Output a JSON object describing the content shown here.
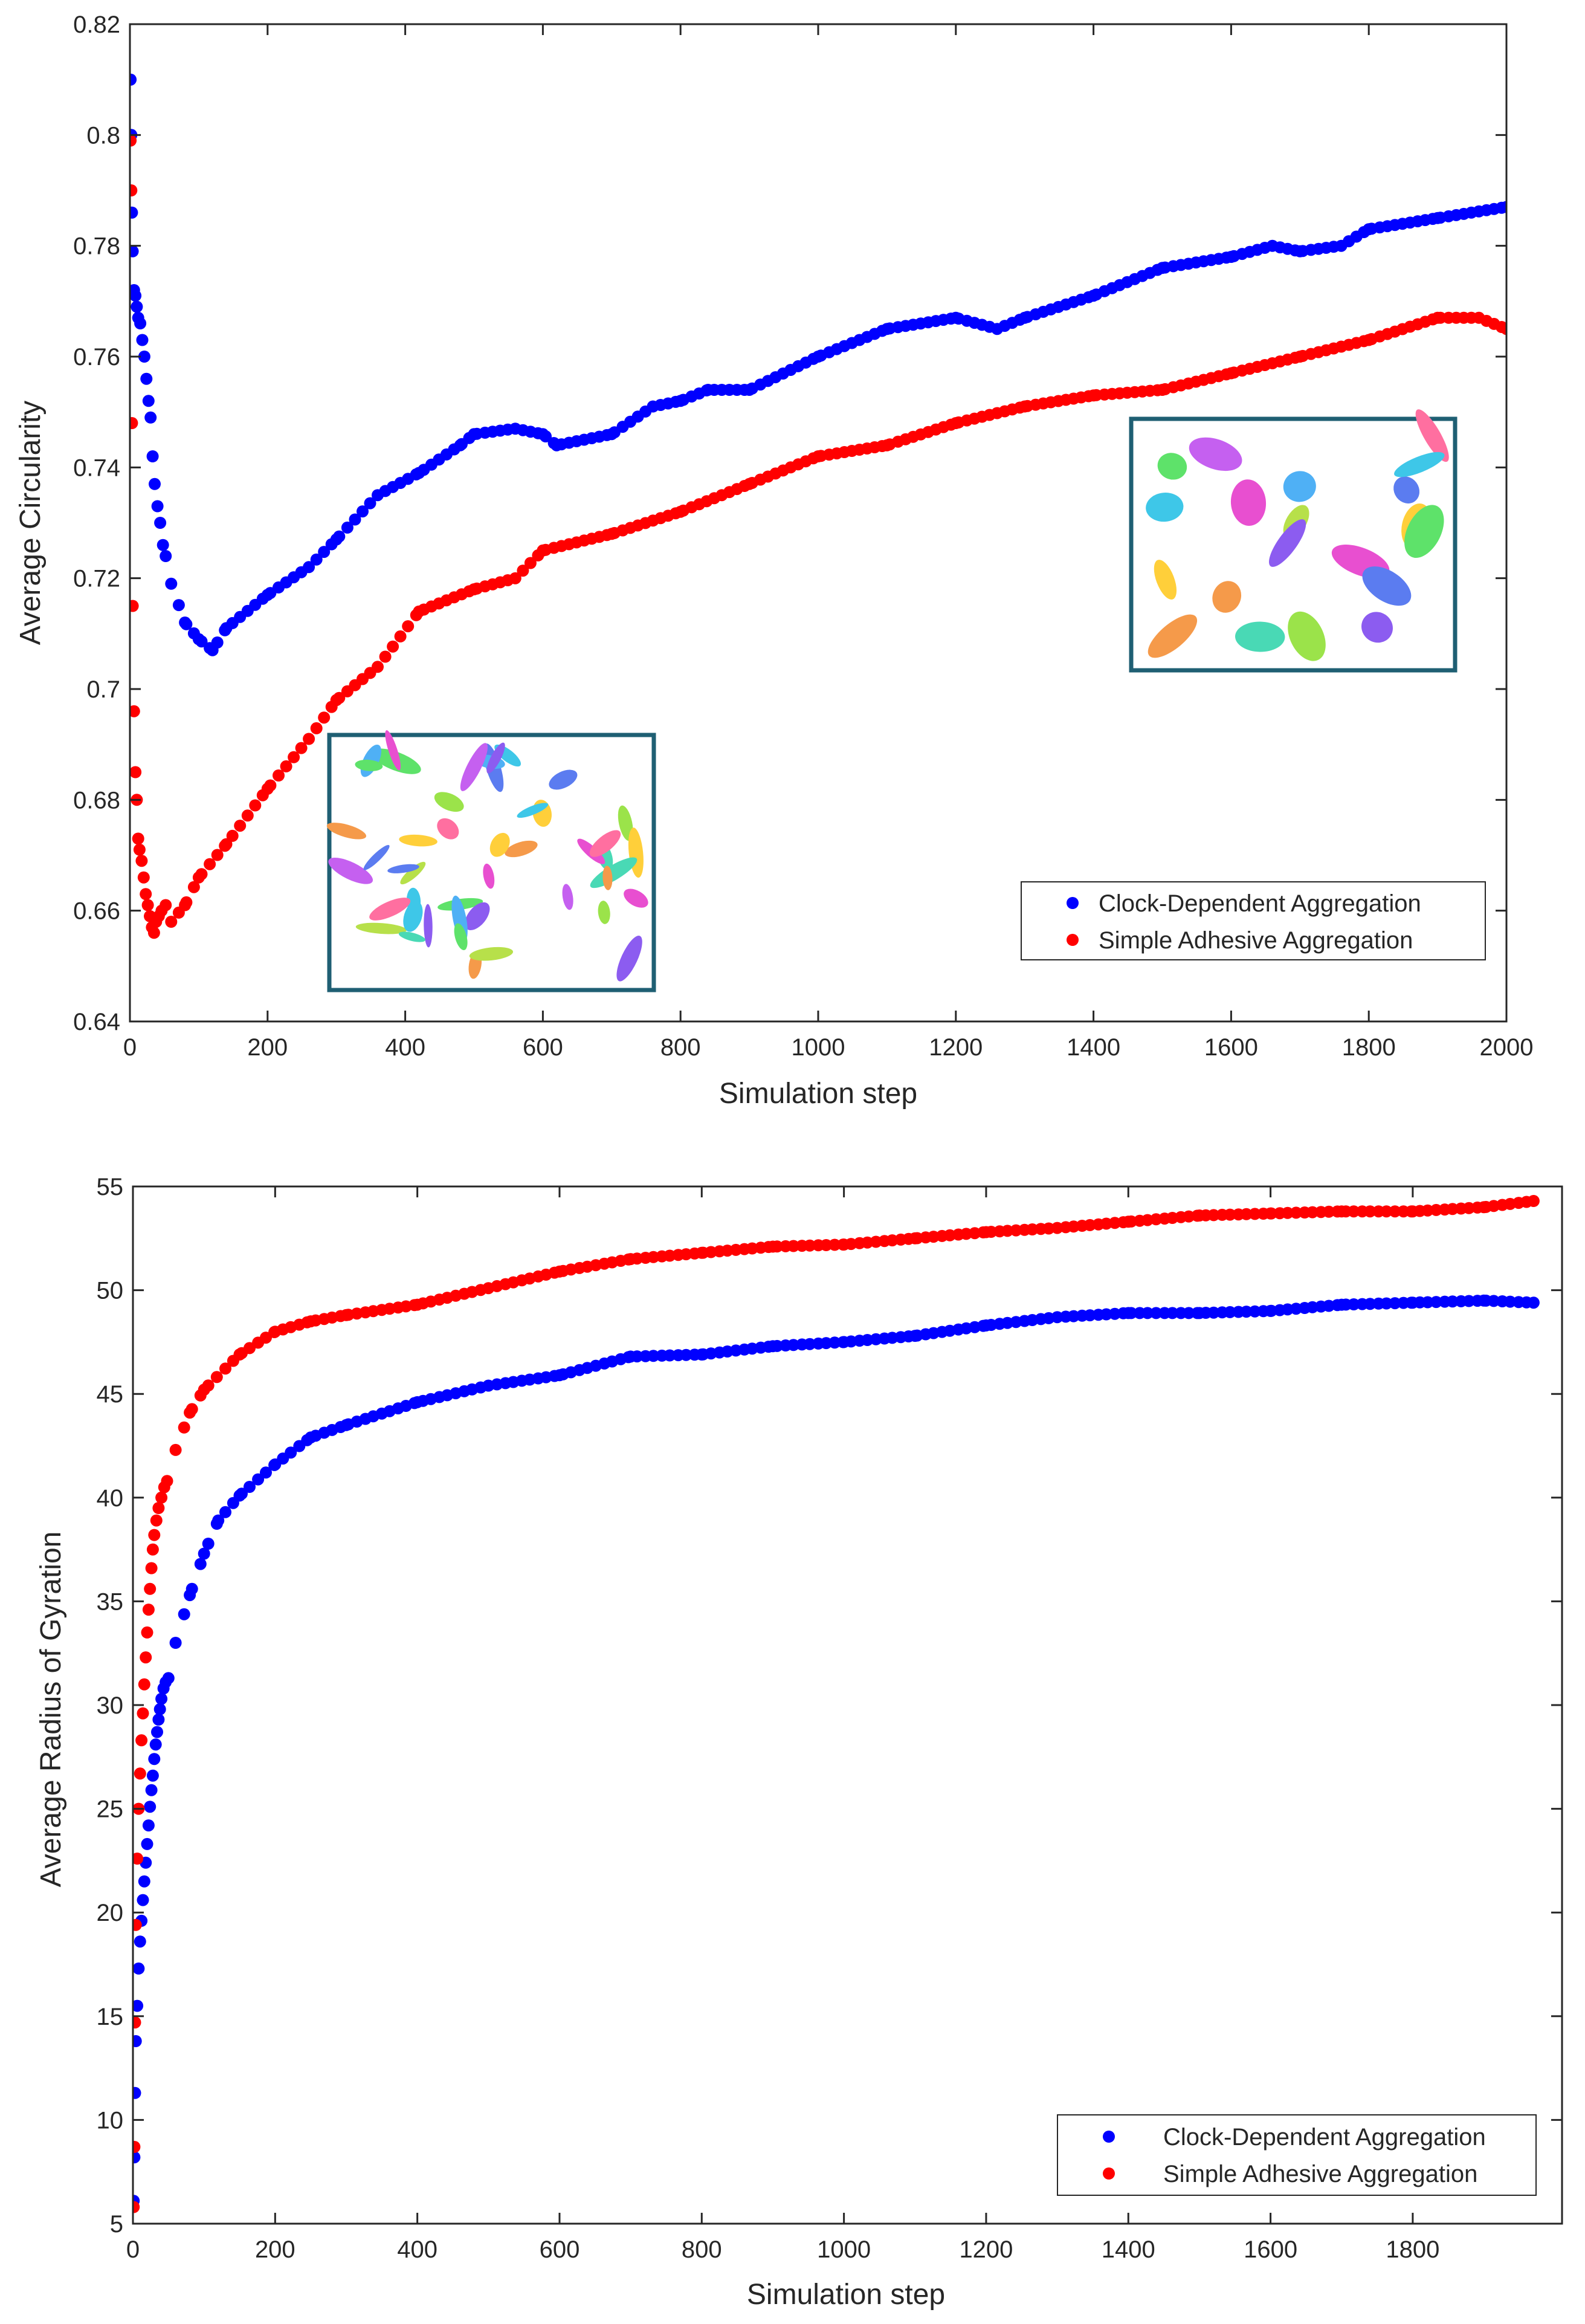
{
  "chart_data": [
    {
      "type": "scatter",
      "xlabel": "Simulation step",
      "ylabel": "Average Circularity",
      "xlim": [
        0,
        2000
      ],
      "ylim": [
        0.64,
        0.82
      ],
      "xticks": [
        "0",
        "200",
        "400",
        "600",
        "800",
        "1000",
        "1200",
        "1400",
        "1600",
        "1800",
        "2000"
      ],
      "yticks": [
        "0.64",
        "0.66",
        "0.68",
        "0.7",
        "0.72",
        "0.74",
        "0.76",
        "0.78",
        "0.8",
        "0.82"
      ],
      "legend_position": "bottom-right",
      "insets": [
        "cluster-snapshot-simple-adhesive",
        "cluster-snapshot-clock-dependent"
      ],
      "series": [
        {
          "name": "Clock-Dependent Aggregation",
          "color": "#0000ff",
          "anchors": [
            [
              1,
              0.81
            ],
            [
              2,
              0.8
            ],
            [
              3,
              0.786
            ],
            [
              4,
              0.779
            ],
            [
              6,
              0.772
            ],
            [
              8,
              0.771
            ],
            [
              10,
              0.769
            ],
            [
              12,
              0.767
            ],
            [
              15,
              0.766
            ],
            [
              18,
              0.763
            ],
            [
              21,
              0.76
            ],
            [
              24,
              0.756
            ],
            [
              27,
              0.752
            ],
            [
              30,
              0.749
            ],
            [
              33,
              0.742
            ],
            [
              36,
              0.737
            ],
            [
              40,
              0.733
            ],
            [
              44,
              0.73
            ],
            [
              48,
              0.726
            ],
            [
              52,
              0.724
            ],
            [
              60,
              0.719
            ],
            [
              80,
              0.712
            ],
            [
              100,
              0.709
            ],
            [
              120,
              0.707
            ],
            [
              140,
              0.711
            ],
            [
              200,
              0.717
            ],
            [
              260,
              0.722
            ],
            [
              300,
              0.727
            ],
            [
              360,
              0.735
            ],
            [
              420,
              0.739
            ],
            [
              480,
              0.744
            ],
            [
              500,
              0.746
            ],
            [
              560,
              0.747
            ],
            [
              600,
              0.746
            ],
            [
              620,
              0.744
            ],
            [
              660,
              0.745
            ],
            [
              700,
              0.746
            ],
            [
              760,
              0.751
            ],
            [
              800,
              0.752
            ],
            [
              840,
              0.754
            ],
            [
              900,
              0.754
            ],
            [
              1000,
              0.76
            ],
            [
              1100,
              0.765
            ],
            [
              1200,
              0.767
            ],
            [
              1260,
              0.765
            ],
            [
              1300,
              0.767
            ],
            [
              1400,
              0.771
            ],
            [
              1500,
              0.776
            ],
            [
              1600,
              0.778
            ],
            [
              1660,
              0.78
            ],
            [
              1700,
              0.779
            ],
            [
              1760,
              0.78
            ],
            [
              1800,
              0.783
            ],
            [
              1900,
              0.785
            ],
            [
              2000,
              0.787
            ]
          ],
          "count": 180
        },
        {
          "name": "Simple Adhesive Aggregation",
          "color": "#ff0000",
          "anchors": [
            [
              1,
              0.799
            ],
            [
              2,
              0.79
            ],
            [
              3,
              0.748
            ],
            [
              4,
              0.715
            ],
            [
              6,
              0.696
            ],
            [
              8,
              0.685
            ],
            [
              10,
              0.68
            ],
            [
              12,
              0.673
            ],
            [
              14,
              0.671
            ],
            [
              17,
              0.669
            ],
            [
              20,
              0.666
            ],
            [
              23,
              0.663
            ],
            [
              26,
              0.661
            ],
            [
              29,
              0.659
            ],
            [
              32,
              0.657
            ],
            [
              35,
              0.656
            ],
            [
              38,
              0.658
            ],
            [
              42,
              0.659
            ],
            [
              46,
              0.66
            ],
            [
              52,
              0.661
            ],
            [
              60,
              0.658
            ],
            [
              80,
              0.661
            ],
            [
              100,
              0.666
            ],
            [
              140,
              0.672
            ],
            [
              200,
              0.682
            ],
            [
              260,
              0.691
            ],
            [
              300,
              0.698
            ],
            [
              360,
              0.704
            ],
            [
              420,
              0.714
            ],
            [
              500,
              0.718
            ],
            [
              560,
              0.72
            ],
            [
              600,
              0.725
            ],
            [
              700,
              0.728
            ],
            [
              800,
              0.732
            ],
            [
              900,
              0.737
            ],
            [
              1000,
              0.742
            ],
            [
              1100,
              0.744
            ],
            [
              1200,
              0.748
            ],
            [
              1300,
              0.751
            ],
            [
              1400,
              0.753
            ],
            [
              1500,
              0.754
            ],
            [
              1600,
              0.757
            ],
            [
              1700,
              0.76
            ],
            [
              1800,
              0.763
            ],
            [
              1900,
              0.767
            ],
            [
              1960,
              0.767
            ],
            [
              2000,
              0.765
            ]
          ],
          "count": 180
        }
      ]
    },
    {
      "type": "scatter",
      "xlabel": "Simulation step",
      "ylabel": "Average Radius of Gyration",
      "xlim": [
        0,
        2000
      ],
      "ylim": [
        5,
        55
      ],
      "xticks": [
        "0",
        "200",
        "400",
        "600",
        "800",
        "1000",
        "1200",
        "1400",
        "1600",
        "1800"
      ],
      "yticks": [
        "5",
        "10",
        "15",
        "20",
        "25",
        "30",
        "35",
        "40",
        "45",
        "50",
        "55"
      ],
      "legend_position": "bottom-right",
      "series": [
        {
          "name": "Clock-Dependent Aggregation",
          "color": "#0000ff",
          "anchors": [
            [
              1,
              6.1
            ],
            [
              2,
              8.2
            ],
            [
              3,
              11.3
            ],
            [
              4,
              13.8
            ],
            [
              6,
              15.5
            ],
            [
              8,
              17.3
            ],
            [
              10,
              18.6
            ],
            [
              12,
              19.6
            ],
            [
              14,
              20.6
            ],
            [
              16,
              21.5
            ],
            [
              18,
              22.4
            ],
            [
              20,
              23.3
            ],
            [
              22,
              24.2
            ],
            [
              24,
              25.1
            ],
            [
              26,
              25.9
            ],
            [
              28,
              26.6
            ],
            [
              30,
              27.4
            ],
            [
              32,
              28.1
            ],
            [
              34,
              28.7
            ],
            [
              36,
              29.3
            ],
            [
              38,
              29.8
            ],
            [
              40,
              30.3
            ],
            [
              43,
              30.8
            ],
            [
              46,
              31.1
            ],
            [
              50,
              31.3
            ],
            [
              60,
              33
            ],
            [
              80,
              35.3
            ],
            [
              100,
              37.3
            ],
            [
              120,
              38.9
            ],
            [
              150,
              40.1
            ],
            [
              200,
              41.6
            ],
            [
              250,
              42.9
            ],
            [
              300,
              43.5
            ],
            [
              400,
              44.6
            ],
            [
              500,
              45.4
            ],
            [
              600,
              45.9
            ],
            [
              700,
              46.8
            ],
            [
              800,
              46.9
            ],
            [
              900,
              47.3
            ],
            [
              1000,
              47.5
            ],
            [
              1100,
              47.8
            ],
            [
              1200,
              48.3
            ],
            [
              1300,
              48.7
            ],
            [
              1400,
              48.9
            ],
            [
              1500,
              48.9
            ],
            [
              1600,
              49
            ],
            [
              1700,
              49.3
            ],
            [
              1800,
              49.4
            ],
            [
              1900,
              49.5
            ],
            [
              1970,
              49.4
            ]
          ],
          "count": 170
        },
        {
          "name": "Simple Adhesive Aggregation",
          "color": "#ff0000",
          "anchors": [
            [
              1,
              5.8
            ],
            [
              2,
              8.7
            ],
            [
              3,
              14.7
            ],
            [
              4,
              19.4
            ],
            [
              6,
              22.6
            ],
            [
              8,
              25
            ],
            [
              10,
              26.7
            ],
            [
              12,
              28.3
            ],
            [
              14,
              29.6
            ],
            [
              16,
              31
            ],
            [
              18,
              32.3
            ],
            [
              20,
              33.5
            ],
            [
              22,
              34.6
            ],
            [
              24,
              35.6
            ],
            [
              26,
              36.6
            ],
            [
              28,
              37.5
            ],
            [
              30,
              38.2
            ],
            [
              33,
              38.9
            ],
            [
              36,
              39.5
            ],
            [
              40,
              40
            ],
            [
              44,
              40.5
            ],
            [
              48,
              40.8
            ],
            [
              60,
              42.3
            ],
            [
              80,
              44.1
            ],
            [
              100,
              45.2
            ],
            [
              150,
              46.9
            ],
            [
              200,
              48
            ],
            [
              250,
              48.5
            ],
            [
              300,
              48.8
            ],
            [
              400,
              49.3
            ],
            [
              500,
              50.1
            ],
            [
              600,
              50.9
            ],
            [
              700,
              51.5
            ],
            [
              800,
              51.8
            ],
            [
              900,
              52.1
            ],
            [
              1000,
              52.2
            ],
            [
              1100,
              52.5
            ],
            [
              1200,
              52.8
            ],
            [
              1300,
              53
            ],
            [
              1400,
              53.3
            ],
            [
              1500,
              53.6
            ],
            [
              1600,
              53.7
            ],
            [
              1700,
              53.8
            ],
            [
              1800,
              53.8
            ],
            [
              1900,
              54
            ],
            [
              1970,
              54.3
            ]
          ],
          "count": 170
        }
      ]
    }
  ]
}
